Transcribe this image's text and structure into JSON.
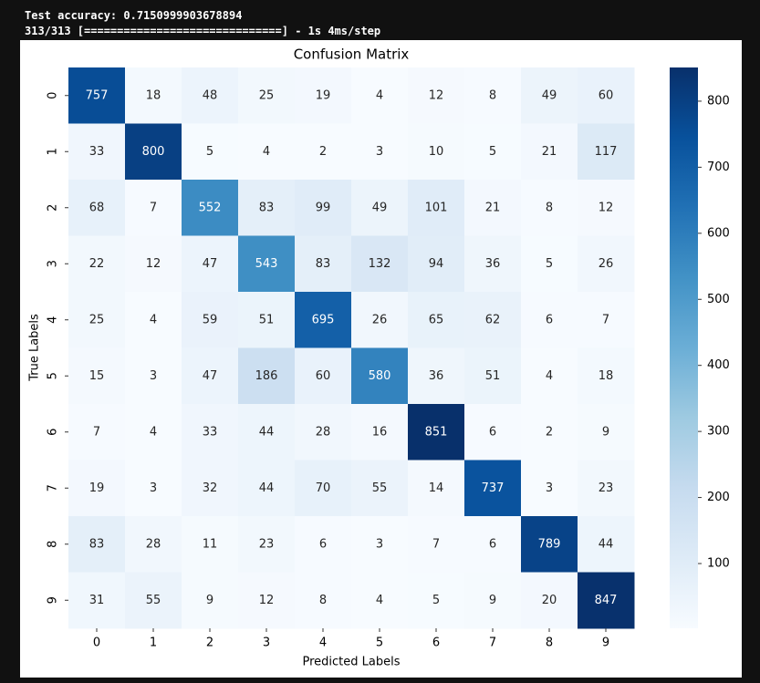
{
  "console": [
    "Test accuracy: 0.7150999903678894",
    "313/313 [==============================] - 1s 4ms/step"
  ],
  "chart_data": {
    "type": "heatmap",
    "title": "Confusion Matrix",
    "x_label": "Predicted Labels",
    "y_label": "True Labels",
    "x": [
      "0",
      "1",
      "2",
      "3",
      "4",
      "5",
      "6",
      "7",
      "8",
      "9"
    ],
    "y": [
      "0",
      "1",
      "2",
      "3",
      "4",
      "5",
      "6",
      "7",
      "8",
      "9"
    ],
    "values": [
      [
        757,
        18,
        48,
        25,
        19,
        4,
        12,
        8,
        49,
        60
      ],
      [
        33,
        800,
        5,
        4,
        2,
        3,
        10,
        5,
        21,
        117
      ],
      [
        68,
        7,
        552,
        83,
        99,
        49,
        101,
        21,
        8,
        12
      ],
      [
        22,
        12,
        47,
        543,
        83,
        132,
        94,
        36,
        5,
        26
      ],
      [
        25,
        4,
        59,
        51,
        695,
        26,
        65,
        62,
        6,
        7
      ],
      [
        15,
        3,
        47,
        186,
        60,
        580,
        36,
        51,
        4,
        18
      ],
      [
        7,
        4,
        33,
        44,
        28,
        16,
        851,
        6,
        2,
        9
      ],
      [
        19,
        3,
        32,
        44,
        70,
        55,
        14,
        737,
        3,
        23
      ],
      [
        83,
        28,
        11,
        23,
        6,
        3,
        7,
        6,
        789,
        44
      ],
      [
        31,
        55,
        9,
        12,
        8,
        4,
        5,
        9,
        20,
        847
      ]
    ],
    "colormap": "Blues",
    "zlim": [
      2,
      851
    ],
    "zticks": [
      100,
      200,
      300,
      400,
      500,
      600,
      700,
      800
    ]
  }
}
